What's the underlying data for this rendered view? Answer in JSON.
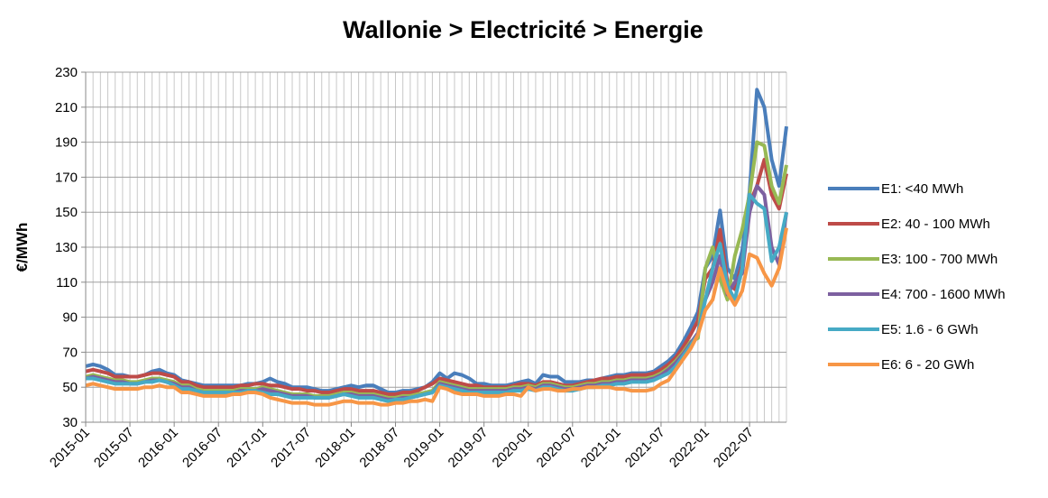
{
  "chart_data": {
    "type": "line",
    "title": "Wallonie > Electricité > Energie",
    "y_label": "€/MWh",
    "categories": [
      "2015-01",
      null,
      null,
      null,
      null,
      null,
      "2015-07",
      null,
      null,
      null,
      null,
      null,
      "2016-01",
      null,
      null,
      null,
      null,
      null,
      "2016-07",
      null,
      null,
      null,
      null,
      null,
      "2017-01",
      null,
      null,
      null,
      null,
      null,
      "2017-07",
      null,
      null,
      null,
      null,
      null,
      "2018-01",
      null,
      null,
      null,
      null,
      null,
      "2018-07",
      null,
      null,
      null,
      null,
      null,
      "2019-01",
      null,
      null,
      null,
      null,
      null,
      "2019-07",
      null,
      null,
      null,
      null,
      null,
      "2020-01",
      null,
      null,
      null,
      null,
      null,
      "2020-07",
      null,
      null,
      null,
      null,
      null,
      "2021-01",
      null,
      null,
      null,
      null,
      null,
      "2021-07",
      null,
      null,
      null,
      null,
      null,
      "2022-01",
      null,
      null,
      null,
      null,
      null,
      "2022-07",
      null,
      null,
      null,
      null,
      null
    ],
    "ylim": [
      30,
      230
    ],
    "yticks": [
      30,
      50,
      70,
      90,
      110,
      130,
      150,
      170,
      190,
      210,
      230
    ],
    "grid": true,
    "legend": "right",
    "series": [
      {
        "name": "E1: <40 MWh",
        "color": "#4a7ebb",
        "values": [
          62,
          63,
          62,
          60,
          57,
          57,
          56,
          56,
          57,
          59,
          60,
          58,
          57,
          54,
          53,
          52,
          51,
          51,
          51,
          51,
          51,
          51,
          52,
          52,
          53,
          55,
          53,
          52,
          50,
          50,
          50,
          49,
          48,
          48,
          49,
          50,
          51,
          50,
          51,
          51,
          49,
          47,
          47,
          48,
          48,
          49,
          50,
          53,
          58,
          55,
          58,
          57,
          55,
          52,
          52,
          51,
          51,
          51,
          52,
          53,
          54,
          52,
          57,
          56,
          56,
          53,
          53,
          53,
          54,
          54,
          55,
          56,
          57,
          57,
          58,
          58,
          58,
          59,
          62,
          65,
          69,
          76,
          84,
          93,
          118,
          125,
          151,
          118,
          112,
          128,
          162,
          220,
          210,
          180,
          165,
          199
        ]
      },
      {
        "name": "E2: 40 - 100 MWh",
        "color": "#be4b48",
        "values": [
          59,
          60,
          59,
          58,
          56,
          56,
          56,
          56,
          57,
          58,
          58,
          57,
          56,
          53,
          53,
          51,
          50,
          50,
          50,
          50,
          50,
          51,
          51,
          52,
          52,
          51,
          51,
          50,
          49,
          49,
          48,
          48,
          47,
          47,
          48,
          49,
          49,
          48,
          48,
          48,
          47,
          46,
          46,
          47,
          47,
          48,
          50,
          52,
          55,
          54,
          53,
          52,
          51,
          51,
          50,
          50,
          50,
          50,
          51,
          52,
          52,
          51,
          53,
          53,
          52,
          51,
          51,
          52,
          53,
          54,
          55,
          55,
          56,
          56,
          57,
          57,
          57,
          58,
          60,
          63,
          67,
          73,
          80,
          88,
          112,
          118,
          140,
          110,
          106,
          120,
          155,
          165,
          180,
          160,
          152,
          172
        ]
      },
      {
        "name": "E3: 100 - 700 MWh",
        "color": "#98b954",
        "values": [
          56,
          57,
          56,
          55,
          54,
          54,
          53,
          53,
          54,
          55,
          55,
          54,
          53,
          51,
          51,
          49,
          48,
          48,
          48,
          48,
          48,
          49,
          49,
          49,
          50,
          49,
          48,
          47,
          46,
          46,
          46,
          45,
          45,
          45,
          46,
          47,
          47,
          46,
          46,
          46,
          45,
          44,
          44,
          45,
          45,
          46,
          47,
          48,
          53,
          52,
          51,
          50,
          49,
          49,
          49,
          49,
          49,
          49,
          50,
          50,
          51,
          50,
          52,
          52,
          51,
          50,
          50,
          51,
          52,
          52,
          53,
          53,
          54,
          54,
          55,
          55,
          55,
          56,
          58,
          61,
          65,
          70,
          76,
          78,
          118,
          130,
          112,
          100,
          125,
          140,
          160,
          190,
          188,
          165,
          155,
          177
        ]
      },
      {
        "name": "E4: 700 - 1600 MWh",
        "color": "#7d60a0",
        "values": [
          55,
          56,
          55,
          54,
          53,
          53,
          52,
          52,
          53,
          54,
          54,
          53,
          52,
          50,
          50,
          48,
          47,
          47,
          47,
          47,
          47,
          48,
          48,
          48,
          49,
          48,
          47,
          46,
          45,
          45,
          45,
          44,
          44,
          44,
          45,
          46,
          46,
          45,
          45,
          45,
          44,
          43,
          43,
          44,
          44,
          45,
          46,
          47,
          52,
          51,
          50,
          49,
          48,
          48,
          48,
          48,
          48,
          48,
          49,
          49,
          50,
          49,
          51,
          51,
          50,
          49,
          49,
          50,
          51,
          51,
          52,
          52,
          53,
          53,
          54,
          54,
          54,
          55,
          57,
          60,
          64,
          69,
          75,
          81,
          100,
          110,
          125,
          103,
          110,
          115,
          150,
          165,
          160,
          130,
          120,
          150
        ]
      },
      {
        "name": "E5: 1.6 - 6 GWh",
        "color": "#46aac5",
        "values": [
          55,
          55,
          54,
          53,
          52,
          52,
          52,
          52,
          53,
          53,
          54,
          53,
          51,
          49,
          49,
          48,
          47,
          47,
          47,
          47,
          47,
          47,
          48,
          48,
          47,
          46,
          46,
          45,
          44,
          44,
          44,
          44,
          44,
          44,
          45,
          46,
          45,
          44,
          44,
          44,
          43,
          42,
          43,
          43,
          44,
          45,
          46,
          47,
          51,
          50,
          49,
          48,
          47,
          47,
          47,
          47,
          47,
          47,
          48,
          48,
          49,
          48,
          50,
          50,
          49,
          48,
          48,
          49,
          50,
          50,
          51,
          51,
          52,
          52,
          53,
          53,
          53,
          54,
          56,
          58,
          62,
          68,
          74,
          80,
          100,
          118,
          132,
          108,
          100,
          118,
          160,
          155,
          152,
          122,
          130,
          150
        ]
      },
      {
        "name": "E6: 6 - 20 GWh",
        "color": "#f79646",
        "values": [
          51,
          52,
          51,
          50,
          49,
          49,
          49,
          49,
          50,
          50,
          51,
          50,
          50,
          47,
          47,
          46,
          45,
          45,
          45,
          45,
          46,
          46,
          47,
          47,
          46,
          44,
          43,
          42,
          41,
          41,
          41,
          40,
          40,
          40,
          41,
          42,
          42,
          41,
          41,
          41,
          40,
          40,
          41,
          41,
          42,
          42,
          43,
          42,
          50,
          49,
          47,
          46,
          46,
          46,
          45,
          45,
          45,
          46,
          46,
          45,
          50,
          48,
          49,
          49,
          48,
          48,
          49,
          49,
          50,
          50,
          50,
          50,
          49,
          49,
          48,
          48,
          48,
          49,
          52,
          54,
          60,
          66,
          72,
          80,
          94,
          100,
          118,
          104,
          97,
          105,
          126,
          124,
          115,
          108,
          118,
          141
        ]
      }
    ]
  }
}
